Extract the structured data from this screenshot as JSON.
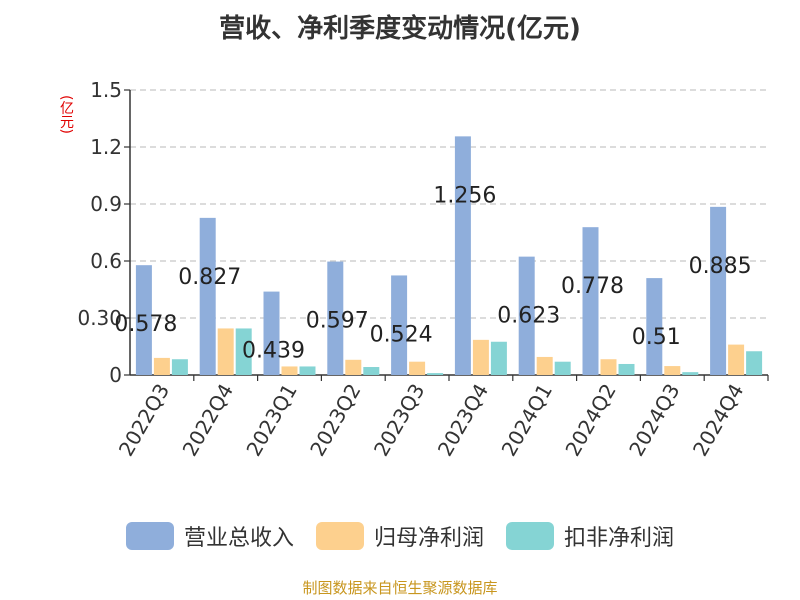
{
  "chart_data": {
    "type": "bar",
    "title": "营收、净利季度变动情况(亿元)",
    "ylabel": "(亿元)",
    "xlabel": "",
    "ylim": [
      0,
      1.5
    ],
    "yticks": [
      "0",
      "0.30",
      "0.6",
      "0.9",
      "1.2",
      "1.5"
    ],
    "grid": true,
    "legend_position": "bottom",
    "categories": [
      "2022Q3",
      "2022Q4",
      "2023Q1",
      "2023Q2",
      "2023Q3",
      "2023Q4",
      "2024Q1",
      "2024Q2",
      "2024Q3",
      "2024Q4"
    ],
    "series": [
      {
        "name": "营业总收入",
        "color": "#8faedb",
        "values": [
          0.578,
          0.827,
          0.439,
          0.597,
          0.524,
          1.256,
          0.623,
          0.778,
          0.51,
          0.885
        ],
        "labels": [
          "0.578",
          "0.827",
          "0.439",
          "0.597",
          "0.524",
          "1.256",
          "0.623",
          "0.778",
          "0.51",
          "0.885"
        ]
      },
      {
        "name": "归母净利润",
        "color": "#fdd08e",
        "values": [
          0.09,
          0.245,
          0.045,
          0.08,
          0.07,
          0.185,
          0.095,
          0.083,
          0.047,
          0.16
        ]
      },
      {
        "name": "扣非净利润",
        "color": "#85d4d4",
        "values": [
          0.083,
          0.245,
          0.045,
          0.042,
          0.01,
          0.175,
          0.07,
          0.058,
          0.015,
          0.125
        ]
      }
    ]
  },
  "source_text": "制图数据来自恒生聚源数据库"
}
